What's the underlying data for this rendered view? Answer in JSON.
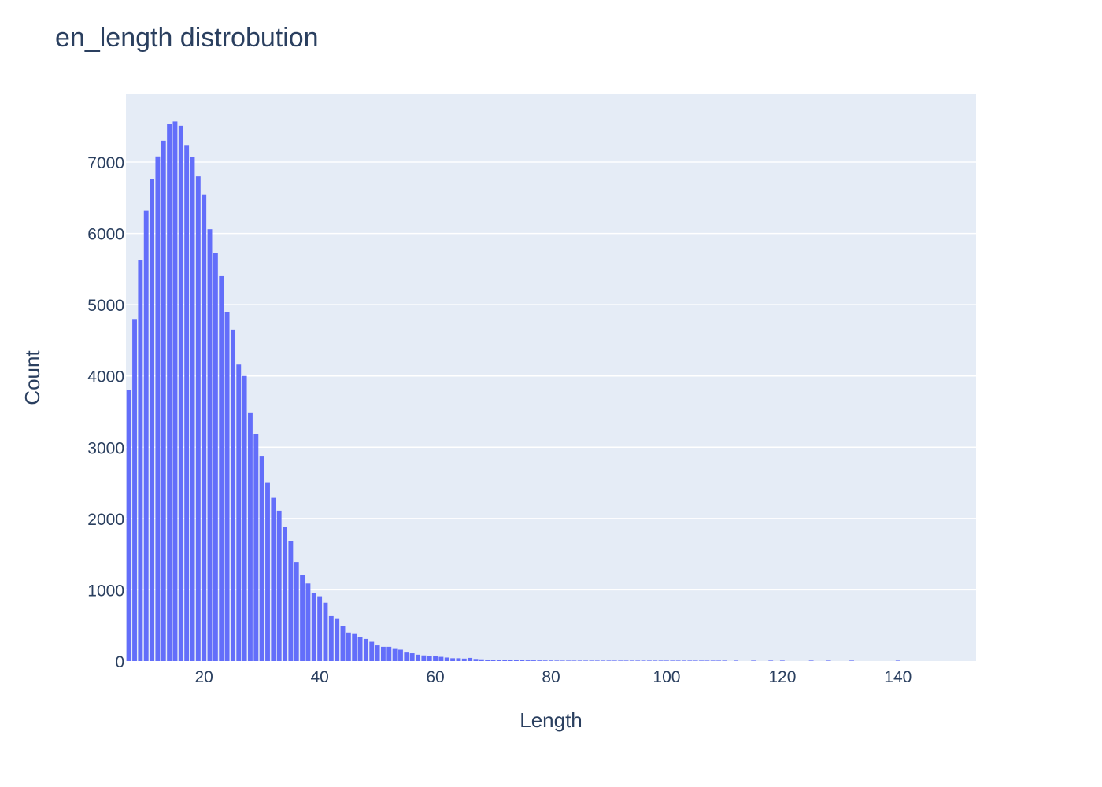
{
  "chart_data": {
    "type": "bar",
    "title": "en_length distrobution",
    "xlabel": "Length",
    "ylabel": "Count",
    "xlim": [
      6.5,
      153.5
    ],
    "ylim": [
      0,
      7950
    ],
    "xticks": [
      20,
      40,
      60,
      80,
      100,
      120,
      140
    ],
    "yticks": [
      0,
      1000,
      2000,
      3000,
      4000,
      5000,
      6000,
      7000
    ],
    "grid": true,
    "legend": "none",
    "bar_color": "#636efa",
    "plot_bg_color": "#e5ecf6",
    "text_color": "#2a3f5f",
    "x": [
      7,
      8,
      9,
      10,
      11,
      12,
      13,
      14,
      15,
      16,
      17,
      18,
      19,
      20,
      21,
      22,
      23,
      24,
      25,
      26,
      27,
      28,
      29,
      30,
      31,
      32,
      33,
      34,
      35,
      36,
      37,
      38,
      39,
      40,
      41,
      42,
      43,
      44,
      45,
      46,
      47,
      48,
      49,
      50,
      51,
      52,
      53,
      54,
      55,
      56,
      57,
      58,
      59,
      60,
      61,
      62,
      63,
      64,
      65,
      66,
      67,
      68,
      69,
      70,
      71,
      72,
      73,
      74,
      75,
      76,
      77,
      78,
      79,
      80,
      81,
      82,
      83,
      84,
      85,
      86,
      87,
      88,
      89,
      90,
      91,
      92,
      93,
      94,
      95,
      96,
      97,
      98,
      99,
      100,
      101,
      102,
      103,
      104,
      105,
      106,
      107,
      108,
      109,
      110,
      112,
      115,
      118,
      120,
      125,
      128,
      132,
      140
    ],
    "values": [
      3800,
      4800,
      5620,
      6320,
      6760,
      7080,
      7300,
      7540,
      7570,
      7510,
      7240,
      7070,
      6800,
      6540,
      6060,
      5730,
      5400,
      4900,
      4650,
      4160,
      4000,
      3480,
      3190,
      2870,
      2500,
      2290,
      2110,
      1880,
      1680,
      1390,
      1210,
      1090,
      950,
      910,
      820,
      630,
      600,
      490,
      400,
      390,
      340,
      310,
      270,
      220,
      200,
      200,
      170,
      160,
      120,
      110,
      90,
      80,
      70,
      70,
      60,
      50,
      40,
      40,
      35,
      45,
      30,
      25,
      20,
      20,
      18,
      15,
      15,
      12,
      12,
      10,
      10,
      9,
      8,
      8,
      7,
      6,
      6,
      5,
      5,
      5,
      4,
      4,
      4,
      3,
      3,
      3,
      3,
      2,
      2,
      2,
      2,
      2,
      2,
      2,
      1,
      1,
      1,
      1,
      1,
      1,
      1,
      1,
      1,
      1,
      1,
      1,
      1,
      1,
      1,
      1,
      1,
      1
    ]
  }
}
